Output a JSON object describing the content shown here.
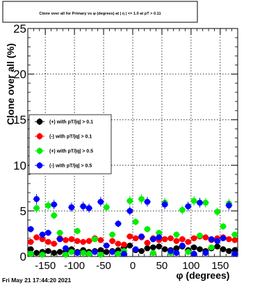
{
  "chart_data": {
    "type": "scatter",
    "title": "Clone  over all for Primary vs φ (degrees) at | η | <= 1.0 at pT > 0.11",
    "xlabel": "φ (degrees)",
    "ylabel": "Clone  over all (%)",
    "xlim": [
      -180,
      180
    ],
    "ylim": [
      0,
      25
    ],
    "grid": true,
    "legend_position": "center-left",
    "y_ticks": [
      "0",
      "5",
      "10",
      "15",
      "20",
      "25"
    ],
    "x_ticks": [
      "-150",
      "-100",
      "-50",
      "0",
      "50",
      "100",
      "150"
    ],
    "x_tick_values": [
      -150,
      -100,
      -50,
      0,
      50,
      100,
      150
    ],
    "y_tick_values": [
      0,
      5,
      10,
      15,
      20,
      25
    ],
    "series": [
      {
        "name": "(+) with pT/|q| > 0.1",
        "color": "#000000",
        "x": [
          -175,
          -165,
          -155,
          -145,
          -135,
          -125,
          -115,
          -105,
          -95,
          -85,
          -75,
          -65,
          -55,
          -45,
          -35,
          -25,
          -15,
          -5,
          5,
          15,
          25,
          35,
          45,
          55,
          65,
          75,
          85,
          95,
          105,
          115,
          125,
          135,
          145,
          155,
          165,
          175
        ],
        "y": [
          0.8,
          0.4,
          0.5,
          0.6,
          0.4,
          0.5,
          0.6,
          0.8,
          0.5,
          0.7,
          0.5,
          0.6,
          0.7,
          0.5,
          0.6,
          0.7,
          1.0,
          1.2,
          0.7,
          0.6,
          0.9,
          1.0,
          1.1,
          0.8,
          0.7,
          0.9,
          1.1,
          0.7,
          1.0,
          0.8,
          0.6,
          0.9,
          1.1,
          0.8,
          0.6,
          0.7
        ]
      },
      {
        "name": "(-) with pT/|q| > 0.1",
        "color": "#ff0000",
        "x": [
          -175,
          -165,
          -155,
          -145,
          -135,
          -125,
          -115,
          -105,
          -95,
          -85,
          -75,
          -65,
          -55,
          -45,
          -35,
          -25,
          -15,
          -5,
          5,
          15,
          25,
          35,
          45,
          55,
          65,
          75,
          85,
          95,
          105,
          115,
          125,
          135,
          145,
          155,
          165,
          175
        ],
        "y": [
          1.6,
          2.1,
          1.9,
          1.6,
          1.4,
          2.0,
          1.8,
          1.9,
          1.7,
          1.6,
          1.7,
          2.0,
          1.8,
          1.2,
          1.7,
          1.4,
          1.3,
          2.2,
          2.0,
          2.1,
          1.5,
          2.0,
          1.8,
          1.9,
          2.0,
          1.7,
          1.9,
          1.6,
          2.0,
          2.2,
          2.1,
          1.8,
          2.0,
          2.1,
          1.9,
          1.8
        ]
      },
      {
        "name": "(+) with pT/|q| > 0.5",
        "color": "#00ee00",
        "x": [
          -175,
          -165,
          -155,
          -145,
          -135,
          -125,
          -115,
          -105,
          -95,
          -85,
          -75,
          -65,
          -55,
          -45,
          -35,
          -25,
          -15,
          -5,
          5,
          15,
          25,
          35,
          45,
          55,
          65,
          75,
          85,
          95,
          105,
          115,
          125,
          135,
          145,
          155,
          165,
          175
        ],
        "y": [
          0.3,
          5.3,
          0.2,
          5.6,
          4.5,
          2.6,
          0.2,
          0.5,
          2.8,
          0.4,
          0.3,
          1.9,
          0.2,
          5.4,
          2.4,
          0.3,
          0.6,
          6.1,
          3.8,
          6.3,
          3.0,
          0.4,
          2.6,
          5.9,
          0.4,
          2.4,
          5.1,
          0.5,
          6.1,
          2.3,
          5.9,
          1.0,
          4.9,
          3.3,
          5.8,
          2.4
        ]
      },
      {
        "name": "(-) with pT/|q| > 0.5",
        "color": "#0000ff",
        "x": [
          -175,
          -165,
          -155,
          -145,
          -135,
          -125,
          -115,
          -105,
          -95,
          -85,
          -75,
          -65,
          -55,
          -45,
          -35,
          -25,
          -15,
          -5,
          5,
          15,
          25,
          35,
          45,
          55,
          65,
          75,
          85,
          95,
          105,
          115,
          125,
          135,
          145,
          155,
          165,
          175
        ],
        "y": [
          3.0,
          6.3,
          2.4,
          2.6,
          5.7,
          1.9,
          0.9,
          5.4,
          0.4,
          5.5,
          5.3,
          0.5,
          6.0,
          1.2,
          0.5,
          3.6,
          0.3,
          5.0,
          0.8,
          2.2,
          6.0,
          1.9,
          2.1,
          5.7,
          0.6,
          0.4,
          1.2,
          5.5,
          0.3,
          5.9,
          0.4,
          1.9,
          1.7,
          2.0,
          5.6,
          0.3
        ]
      }
    ]
  },
  "timestamp": "Fri May 21 17:44:20 2021"
}
